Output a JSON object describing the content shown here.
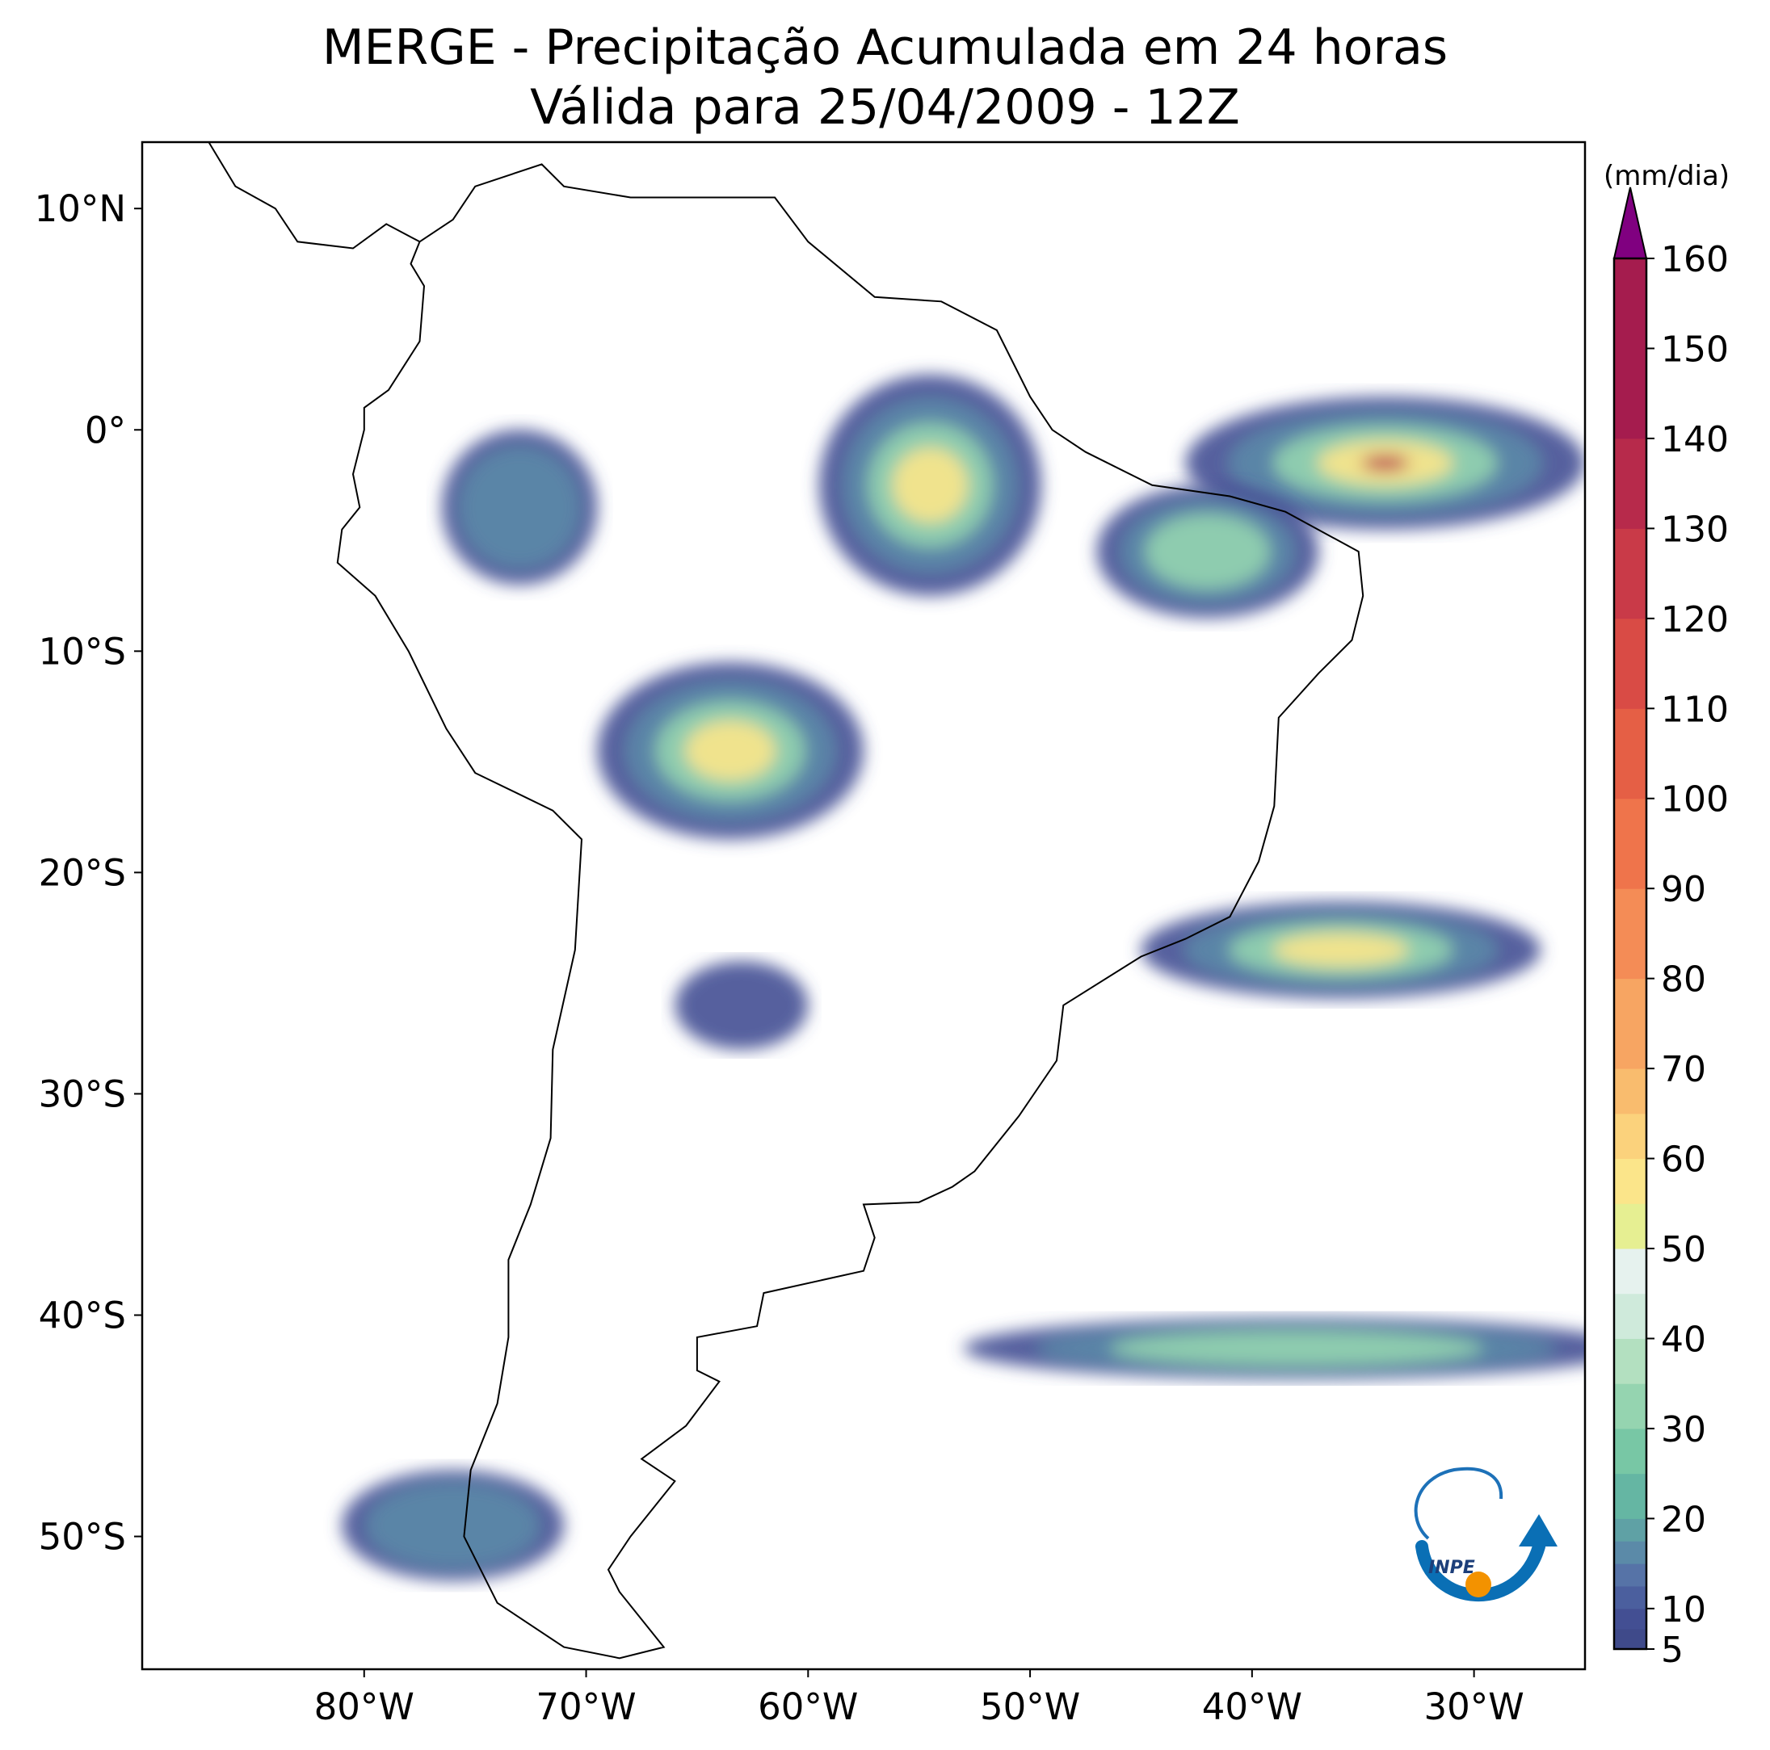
{
  "title": {
    "line1": "MERGE - Precipitação Acumulada em 24 horas",
    "line2": "Válida para 25/04/2009 - 12Z"
  },
  "map": {
    "lon_range": [
      -90,
      -25
    ],
    "lat_range": [
      -56,
      13
    ],
    "lon_ticks": [
      {
        "value": -80,
        "label": "80°W"
      },
      {
        "value": -70,
        "label": "70°W"
      },
      {
        "value": -60,
        "label": "60°W"
      },
      {
        "value": -50,
        "label": "50°W"
      },
      {
        "value": -40,
        "label": "40°W"
      },
      {
        "value": -30,
        "label": "30°W"
      }
    ],
    "lat_ticks": [
      {
        "value": 10,
        "label": "10°N"
      },
      {
        "value": 0,
        "label": "0°"
      },
      {
        "value": -10,
        "label": "10°S"
      },
      {
        "value": -20,
        "label": "20°S"
      },
      {
        "value": -30,
        "label": "30°S"
      },
      {
        "value": -40,
        "label": "40°S"
      },
      {
        "value": -50,
        "label": "50°S"
      }
    ],
    "logo": "inpe-logo",
    "logo_text": "INPE"
  },
  "colorbar": {
    "unit": "(mm/dia)",
    "min": 5,
    "max": 160,
    "extend": "max",
    "ticks": [
      5,
      10,
      20,
      30,
      40,
      50,
      60,
      70,
      80,
      90,
      100,
      110,
      120,
      130,
      140,
      150,
      160
    ],
    "colors": [
      "#3f4a8a",
      "#434f93",
      "#4b5f9e",
      "#5673a7",
      "#5b8aa8",
      "#5fa1a5",
      "#65b6a3",
      "#78c7a5",
      "#95d4b0",
      "#b3e0c0",
      "#cfeadb",
      "#e6f2ee",
      "#e6ef92",
      "#fbe58a",
      "#fbd27c",
      "#f9bc6e",
      "#f7a562",
      "#f48c56",
      "#ef744b",
      "#e55f45",
      "#d94b45",
      "#c93a48",
      "#b72a4b",
      "#a51c4e"
    ],
    "over_color": "#800080"
  },
  "precip_regions": [
    {
      "name": "amazon-east",
      "lon": -54.5,
      "lat": -2.5,
      "rx": 5.0,
      "ry": 5.0,
      "level": 3
    },
    {
      "name": "equatorial-atlantic",
      "lon": -34,
      "lat": -1.5,
      "rx": 9.0,
      "ry": 3.0,
      "level": 4
    },
    {
      "name": "northeast-brazil",
      "lon": -42,
      "lat": -5.5,
      "rx": 5.0,
      "ry": 3.0,
      "level": 2
    },
    {
      "name": "bolivia-west-brazil",
      "lon": -63.5,
      "lat": -14.5,
      "rx": 6.0,
      "ry": 4.0,
      "level": 3
    },
    {
      "name": "peru-amazon",
      "lon": -73,
      "lat": -3.5,
      "rx": 3.5,
      "ry": 3.5,
      "level": 1
    },
    {
      "name": "south-atlantic-band",
      "lon": -36,
      "lat": -23.5,
      "rx": 9.0,
      "ry": 2.2,
      "level": 3
    },
    {
      "name": "southern-ocean-band",
      "lon": -38,
      "lat": -41.5,
      "rx": 15.0,
      "ry": 1.4,
      "level": 2
    },
    {
      "name": "patagonia-coast",
      "lon": -76,
      "lat": -49.5,
      "rx": 5.0,
      "ry": 2.5,
      "level": 1
    },
    {
      "name": "northern-argentina",
      "lon": -63,
      "lat": -26,
      "rx": 3.0,
      "ry": 2.0,
      "level": 0
    }
  ]
}
